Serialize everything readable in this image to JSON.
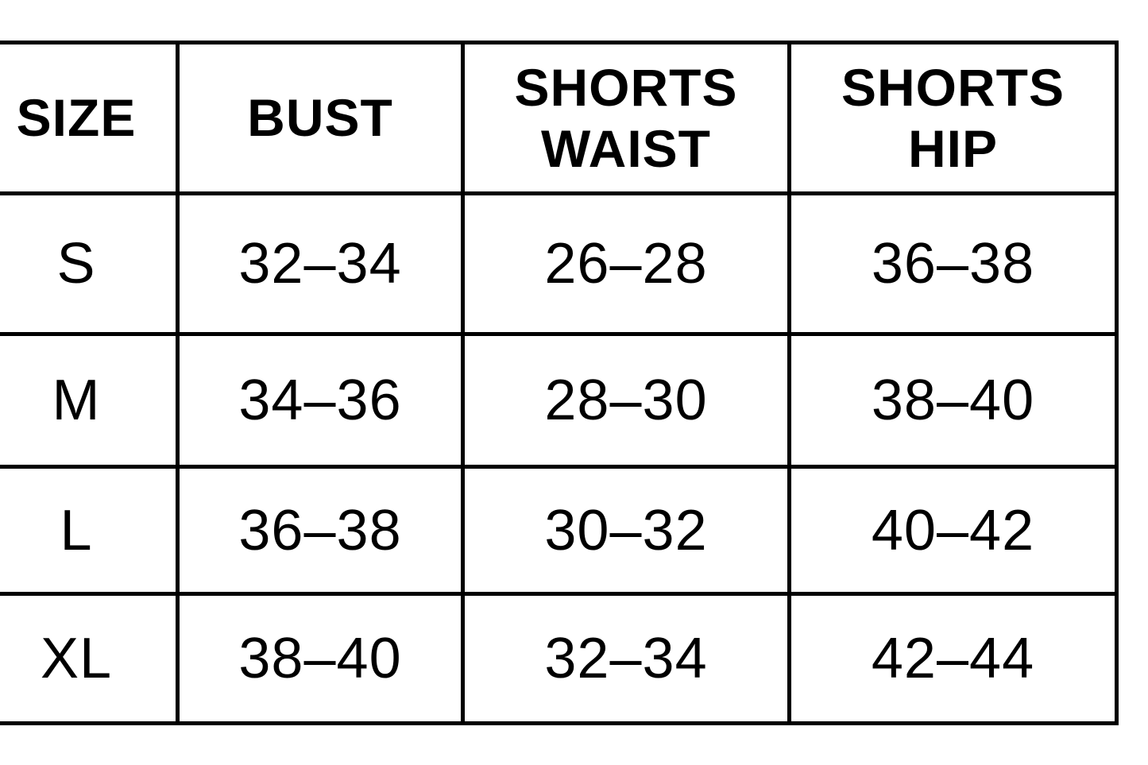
{
  "table": {
    "headers": [
      {
        "lines": [
          "SIZE"
        ]
      },
      {
        "lines": [
          "BUST"
        ]
      },
      {
        "lines": [
          "SHORTS",
          "WAIST"
        ]
      },
      {
        "lines": [
          "SHORTS",
          "HIP"
        ]
      }
    ],
    "rows": [
      [
        "S",
        "32–34",
        "26–28",
        "36–38"
      ],
      [
        "M",
        "34–36",
        "28–30",
        "38–40"
      ],
      [
        "L",
        "36–38",
        "30–32",
        "40–42"
      ],
      [
        "XL",
        "38–40",
        "32–34",
        "42–44"
      ]
    ]
  }
}
